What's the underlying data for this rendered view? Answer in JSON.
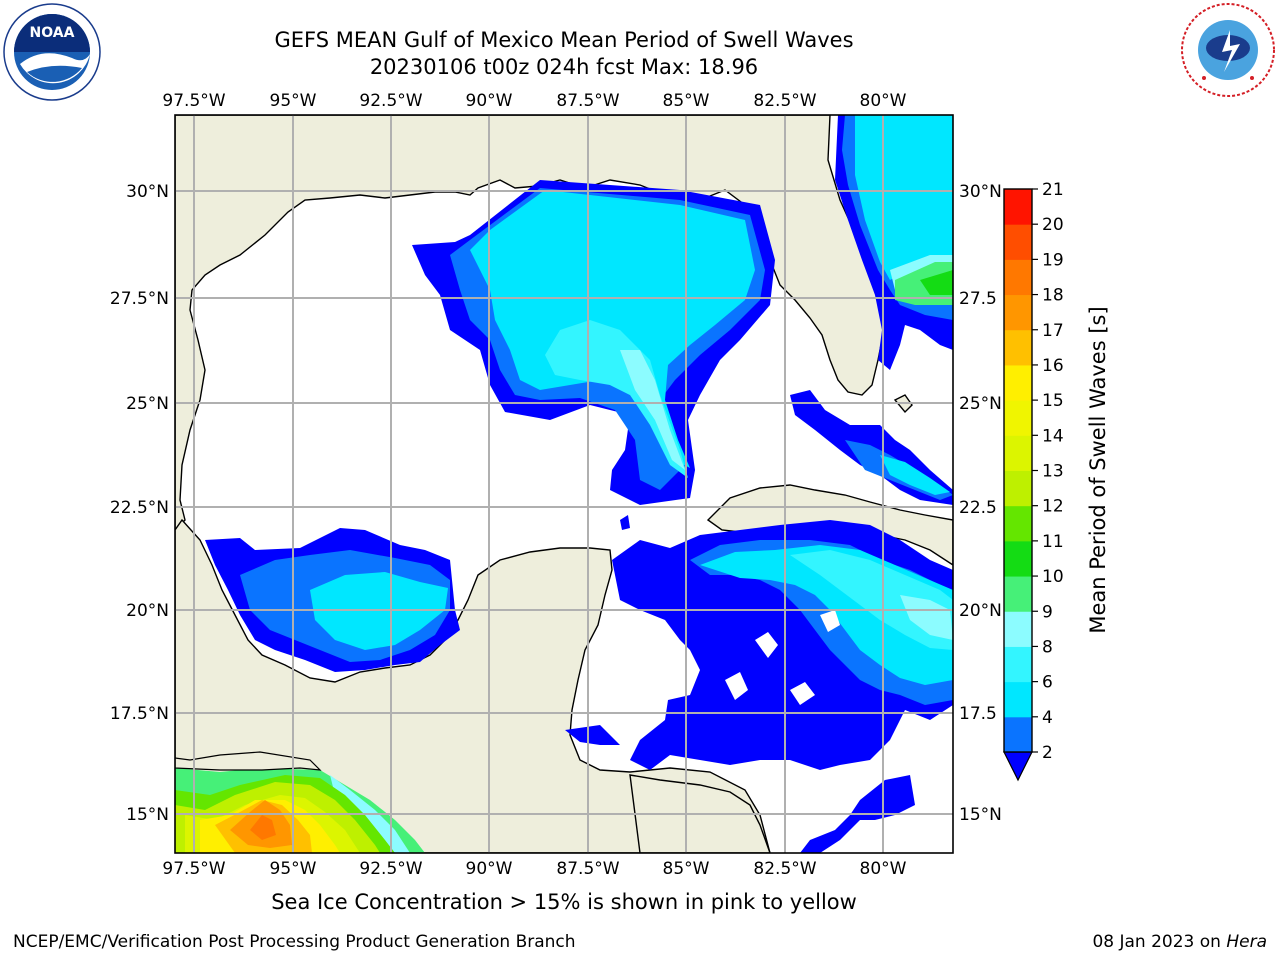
{
  "header": {
    "title": "GEFS MEAN Gulf of Mexico Mean Period of Swell Waves",
    "subtitle": "20230106 t00z 024h fcst   Max: 18.96"
  },
  "logos": {
    "noaa": {
      "text": "NOAA",
      "ring_text": "NATIONAL OCEANIC AND ATMOSPHERIC ADMINISTRATION · U.S. DEPARTMENT OF COMMERCE"
    },
    "nws": {
      "ring_text": "NATIONAL WEATHER SERVICE"
    }
  },
  "map": {
    "lon_labels": [
      "97.5°W",
      "95°W",
      "92.5°W",
      "90°W",
      "87.5°W",
      "85°W",
      "82.5°W",
      "80°W"
    ],
    "lat_labels_left": [
      "30°N",
      "27.5°N",
      "25°N",
      "22.5°N",
      "20°N",
      "17.5°N",
      "15°N"
    ],
    "lat_labels_right": [
      "30°N",
      "27.5",
      "25°N",
      "22.5",
      "20°N",
      "17.5",
      "15°N"
    ],
    "colors": {
      "land": "#eeeedc",
      "ocean": "#ffffff",
      "grid": "#b0b0b0",
      "coast": "#000000"
    }
  },
  "colorbar": {
    "label": "Mean Period of Swell Waves [s]",
    "ticks": [
      "2",
      "4",
      "6",
      "8",
      "9",
      "10",
      "11",
      "12",
      "13",
      "14",
      "15",
      "16",
      "17",
      "18",
      "19",
      "20",
      "21"
    ],
    "colors": [
      "#0a74ff",
      "#00e7ff",
      "#33f5ff",
      "#8cfcff",
      "#46f078",
      "#14dc14",
      "#64e600",
      "#bef000",
      "#dcf500",
      "#f0f500",
      "#ffef00",
      "#ffc000",
      "#ff9600",
      "#ff7800",
      "#ff4e00",
      "#ff1400"
    ],
    "extend_color": "#0000ff"
  },
  "footer": {
    "note": "Sea Ice Concentration > 15% is shown in pink to yellow",
    "left": "NCEP/EMC/Verification Post Processing Product Generation Branch",
    "date": "08 Jan 2023 on ",
    "host": "Hera"
  }
}
